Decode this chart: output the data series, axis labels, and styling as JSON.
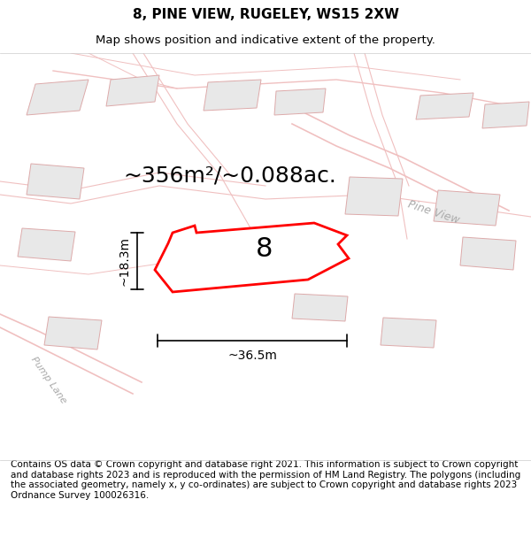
{
  "title_line1": "8, PINE VIEW, RUGELEY, WS15 2XW",
  "title_line2": "Map shows position and indicative extent of the property.",
  "area_text": "~356m²/~0.088ac.",
  "label_number": "8",
  "dim_width": "~36.5m",
  "dim_height": "~18.3m",
  "street_label": "Pine View",
  "street_label2": "Pump Lane",
  "footer_text": "Contains OS data © Crown copyright and database right 2021. This information is subject to Crown copyright and database rights 2023 and is reproduced with the permission of HM Land Registry. The polygons (including the associated geometry, namely x, y co-ordinates) are subject to Crown copyright and database rights 2023 Ordnance Survey 100026316.",
  "background_color": "#ffffff",
  "map_bg_color": "#f5f5f5",
  "plot_color": "#ff0000",
  "building_fill": "#e0e0e0",
  "road_color": "#f0c0c0",
  "title_fontsize": 11,
  "subtitle_fontsize": 9.5,
  "area_fontsize": 18,
  "footer_fontsize": 7.5
}
